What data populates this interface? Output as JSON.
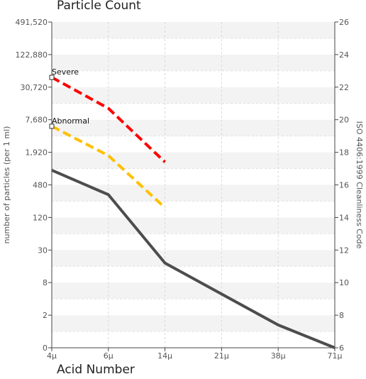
{
  "header": {
    "title": "Particle Count",
    "subtitle": "Acid Number"
  },
  "chart_data": {
    "type": "line",
    "categories": [
      "4μ",
      "6μ",
      "14μ",
      "21μ",
      "38μ",
      "71μ"
    ],
    "ylabel_left": "number of particles (per 1 ml)",
    "ylabel_right": "ISO 4406:1999 Cleanliness Code",
    "left_ticks": [
      "0",
      "2",
      "8",
      "30",
      "120",
      "480",
      "1,920",
      "7,680",
      "30,720",
      "122,880",
      "491,520"
    ],
    "right_ticks": [
      "6",
      "8",
      "10",
      "12",
      "14",
      "16",
      "18",
      "20",
      "22",
      "24",
      "26"
    ],
    "y_range_code": [
      6,
      26
    ],
    "grid": "horizontal bands",
    "series": [
      {
        "name": "",
        "values": [
          16.9,
          15.4,
          11.2,
          null,
          7.4,
          6.0
        ],
        "color": "#4d4d4d",
        "style": "solid"
      },
      {
        "name": "Abnormal",
        "values": [
          19.6,
          17.8,
          14.6,
          null,
          null,
          null
        ],
        "color": "#ffc000",
        "style": "dashed"
      },
      {
        "name": "Severe",
        "values": [
          22.6,
          20.7,
          17.4,
          null,
          null,
          null
        ],
        "color": "#ff0000",
        "style": "dashed"
      }
    ],
    "annotations": [
      {
        "text": "Severe",
        "x": "4μ",
        "y": 22.6
      },
      {
        "text": "Abnormal",
        "x": "4μ",
        "y": 19.6
      }
    ]
  }
}
